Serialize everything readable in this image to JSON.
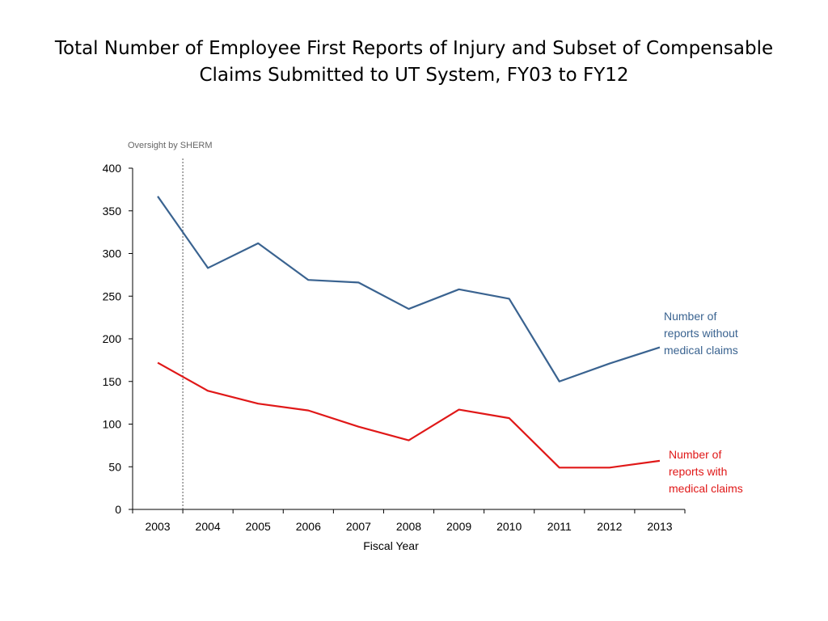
{
  "chart_data": {
    "type": "line",
    "title_lines": [
      "Total Number of Employee First Reports of Injury and Subset of Compensable",
      "Claims Submitted to UT System, FY03 to FY12"
    ],
    "xlabel": "Fiscal Year",
    "ylabel": "",
    "categories": [
      "2003",
      "2004",
      "2005",
      "2006",
      "2007",
      "2008",
      "2009",
      "2010",
      "2011",
      "2012",
      "2013"
    ],
    "ylim": [
      0,
      400
    ],
    "yticks": [
      0,
      50,
      100,
      150,
      200,
      250,
      300,
      350,
      400
    ],
    "grid": false,
    "annotation": {
      "text": "Oversight by SHERM",
      "style": "dotted vertical line between 2003 and 2004"
    },
    "series": [
      {
        "label_lines": [
          "Number of",
          "reports without",
          "medical claims"
        ],
        "color": "#3a6390",
        "values": [
          367,
          283,
          312,
          269,
          266,
          235,
          258,
          247,
          150,
          171,
          190
        ]
      },
      {
        "label_lines": [
          "Number of",
          "reports with",
          "medical claims"
        ],
        "color": "#e01818",
        "values": [
          172,
          139,
          124,
          116,
          97,
          81,
          117,
          107,
          49,
          49,
          57
        ]
      }
    ]
  }
}
